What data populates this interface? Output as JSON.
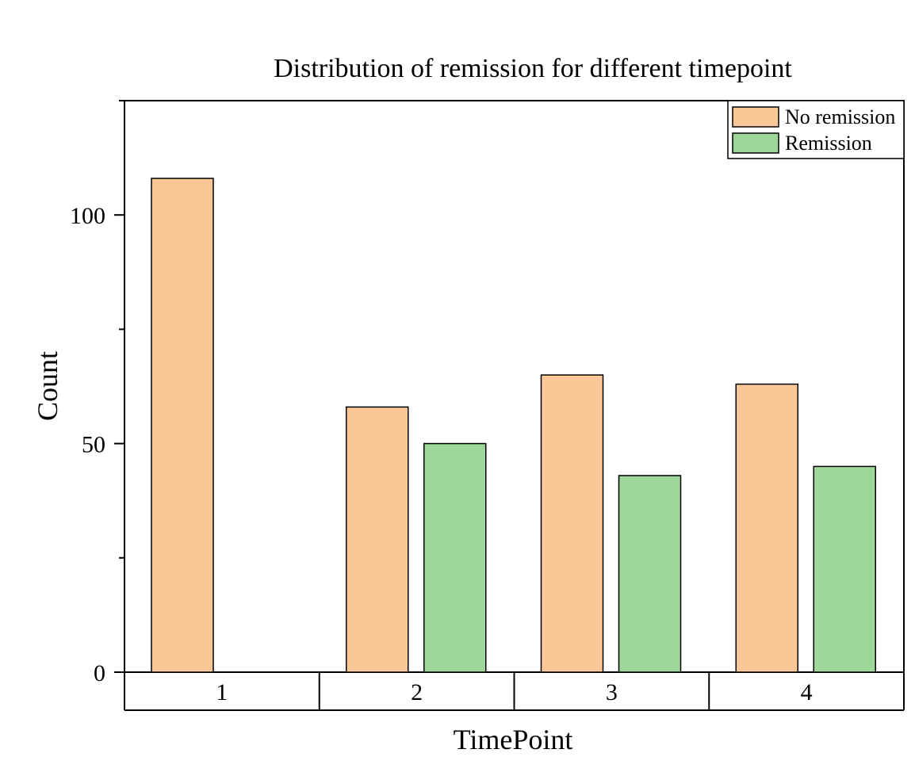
{
  "chart_data": {
    "type": "bar",
    "title": "Distribution of remission for different timepoint",
    "xlabel": "TimePoint",
    "ylabel": "Count",
    "categories": [
      "1",
      "2",
      "3",
      "4"
    ],
    "series": [
      {
        "name": "No remission",
        "color": "#FBC796",
        "values": [
          108,
          58,
          65,
          63
        ]
      },
      {
        "name": "Remission",
        "color": "#9ED79A",
        "values": [
          0,
          50,
          43,
          45
        ]
      }
    ],
    "ylim": [
      0,
      125
    ],
    "yticks": [
      0,
      50,
      100
    ],
    "grid": false,
    "legend_position": "top-right"
  }
}
